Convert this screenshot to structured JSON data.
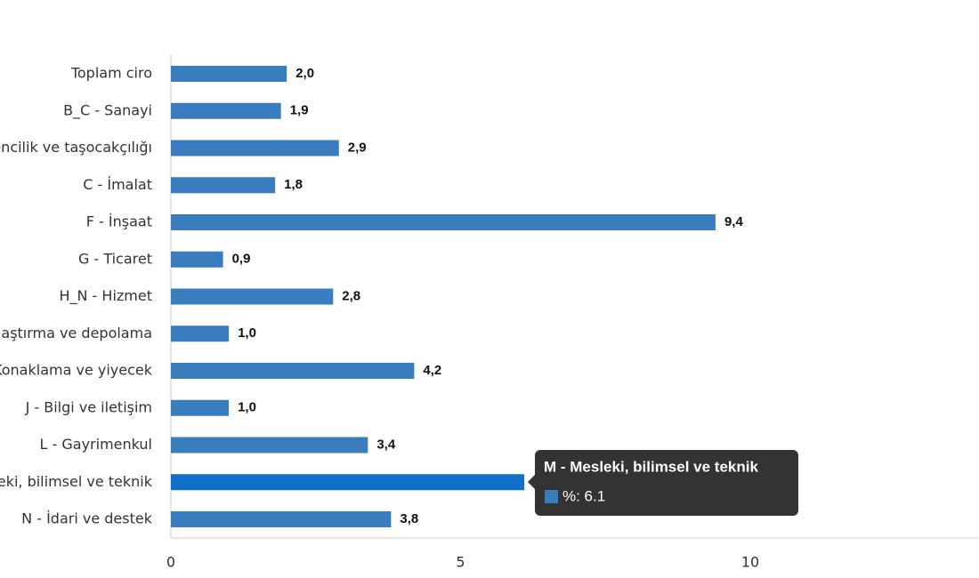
{
  "chart_data": {
    "type": "hbar",
    "categories": [
      "Toplam ciro",
      "B_C - Sanayi",
      "encilik ve taşocakçılığı",
      "C - İmalat",
      "F - İnşaat",
      "G - Ticaret",
      "H_N - Hizmet",
      "laştırma ve depolama",
      "Konaklama ve yiyecek",
      "J - Bilgi ve iletişim",
      "L - Gayrimenkul",
      "eki, bilimsel ve teknik",
      "N - İdari ve destek"
    ],
    "values": [
      2.0,
      1.9,
      2.9,
      1.8,
      9.4,
      0.9,
      2.8,
      1.0,
      4.2,
      1.0,
      3.4,
      6.1,
      3.8
    ],
    "value_labels": [
      "2,0",
      "1,9",
      "2,9",
      "1,8",
      "9,4",
      "0,9",
      "2,8",
      "1,0",
      "4,2",
      "1,0",
      "3,4",
      "6,1",
      "3,8"
    ],
    "colors": [
      "#3a7dbf",
      "#3a7dbf",
      "#3a7dbf",
      "#3a7dbf",
      "#3a7dbf",
      "#3a7dbf",
      "#3a7dbf",
      "#3a7dbf",
      "#3a7dbf",
      "#3a7dbf",
      "#3a7dbf",
      "#1170c9",
      "#3a7dbf"
    ],
    "xlim": [
      0,
      14
    ],
    "xticks": [
      0,
      5,
      10
    ],
    "grid": false,
    "tooltip": {
      "title": "M - Mesleki, bilimsel ve teknik",
      "text": "%: 6.1",
      "color": "#3a7dbf"
    }
  }
}
